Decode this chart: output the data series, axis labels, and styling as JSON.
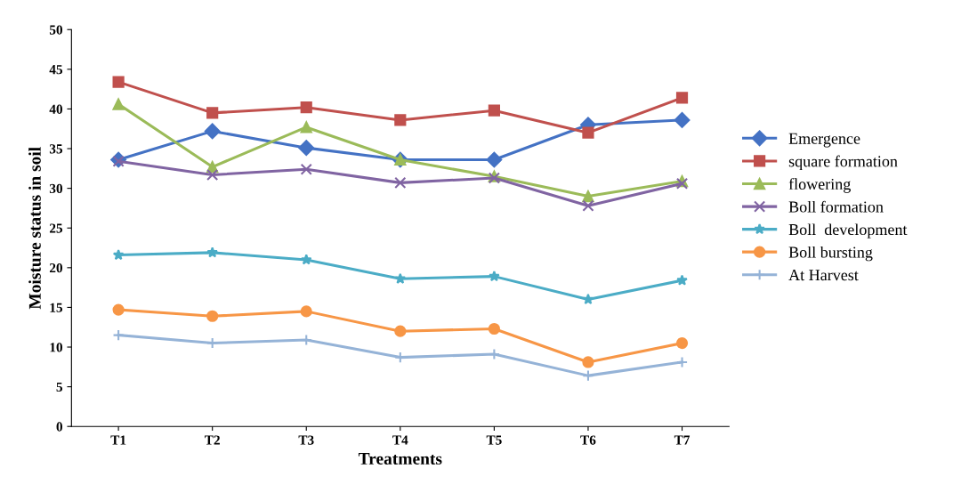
{
  "chart_data": {
    "type": "line",
    "xlabel": "Treatments",
    "ylabel": "Moisture status in soil",
    "categories": [
      "T1",
      "T2",
      "T3",
      "T4",
      "T5",
      "T6",
      "T7"
    ],
    "ylim": [
      0,
      50
    ],
    "yticks": [
      0,
      5,
      10,
      15,
      20,
      25,
      30,
      35,
      40,
      45,
      50
    ],
    "grid": false,
    "legend": "right",
    "series": [
      {
        "name": "Emergence",
        "color": "#4472c4",
        "marker": "diamond",
        "values": [
          33.6,
          37.2,
          35.1,
          33.6,
          33.6,
          38.0,
          38.6
        ]
      },
      {
        "name": "square formation",
        "color": "#c0504d",
        "marker": "square",
        "values": [
          43.4,
          39.5,
          40.2,
          38.6,
          39.8,
          37.0,
          41.4
        ]
      },
      {
        "name": "flowering",
        "color": "#9bbb59",
        "marker": "triangle",
        "values": [
          40.6,
          32.7,
          37.7,
          33.6,
          31.5,
          29.0,
          30.9
        ]
      },
      {
        "name": "Boll formation",
        "color": "#8064a2",
        "marker": "cross",
        "values": [
          33.4,
          31.7,
          32.4,
          30.7,
          31.3,
          27.8,
          30.6
        ]
      },
      {
        "name": "Boll  development",
        "color": "#4bacc6",
        "marker": "star",
        "values": [
          21.6,
          21.9,
          21.0,
          18.6,
          18.9,
          16.0,
          18.4
        ]
      },
      {
        "name": "Boll bursting",
        "color": "#f79646",
        "marker": "circle",
        "values": [
          14.7,
          13.9,
          14.5,
          12.0,
          12.3,
          8.1,
          10.5
        ]
      },
      {
        "name": "At Harvest",
        "color": "#95b3d7",
        "marker": "plus",
        "values": [
          11.5,
          10.5,
          10.9,
          8.7,
          9.1,
          6.4,
          8.1
        ]
      }
    ]
  }
}
